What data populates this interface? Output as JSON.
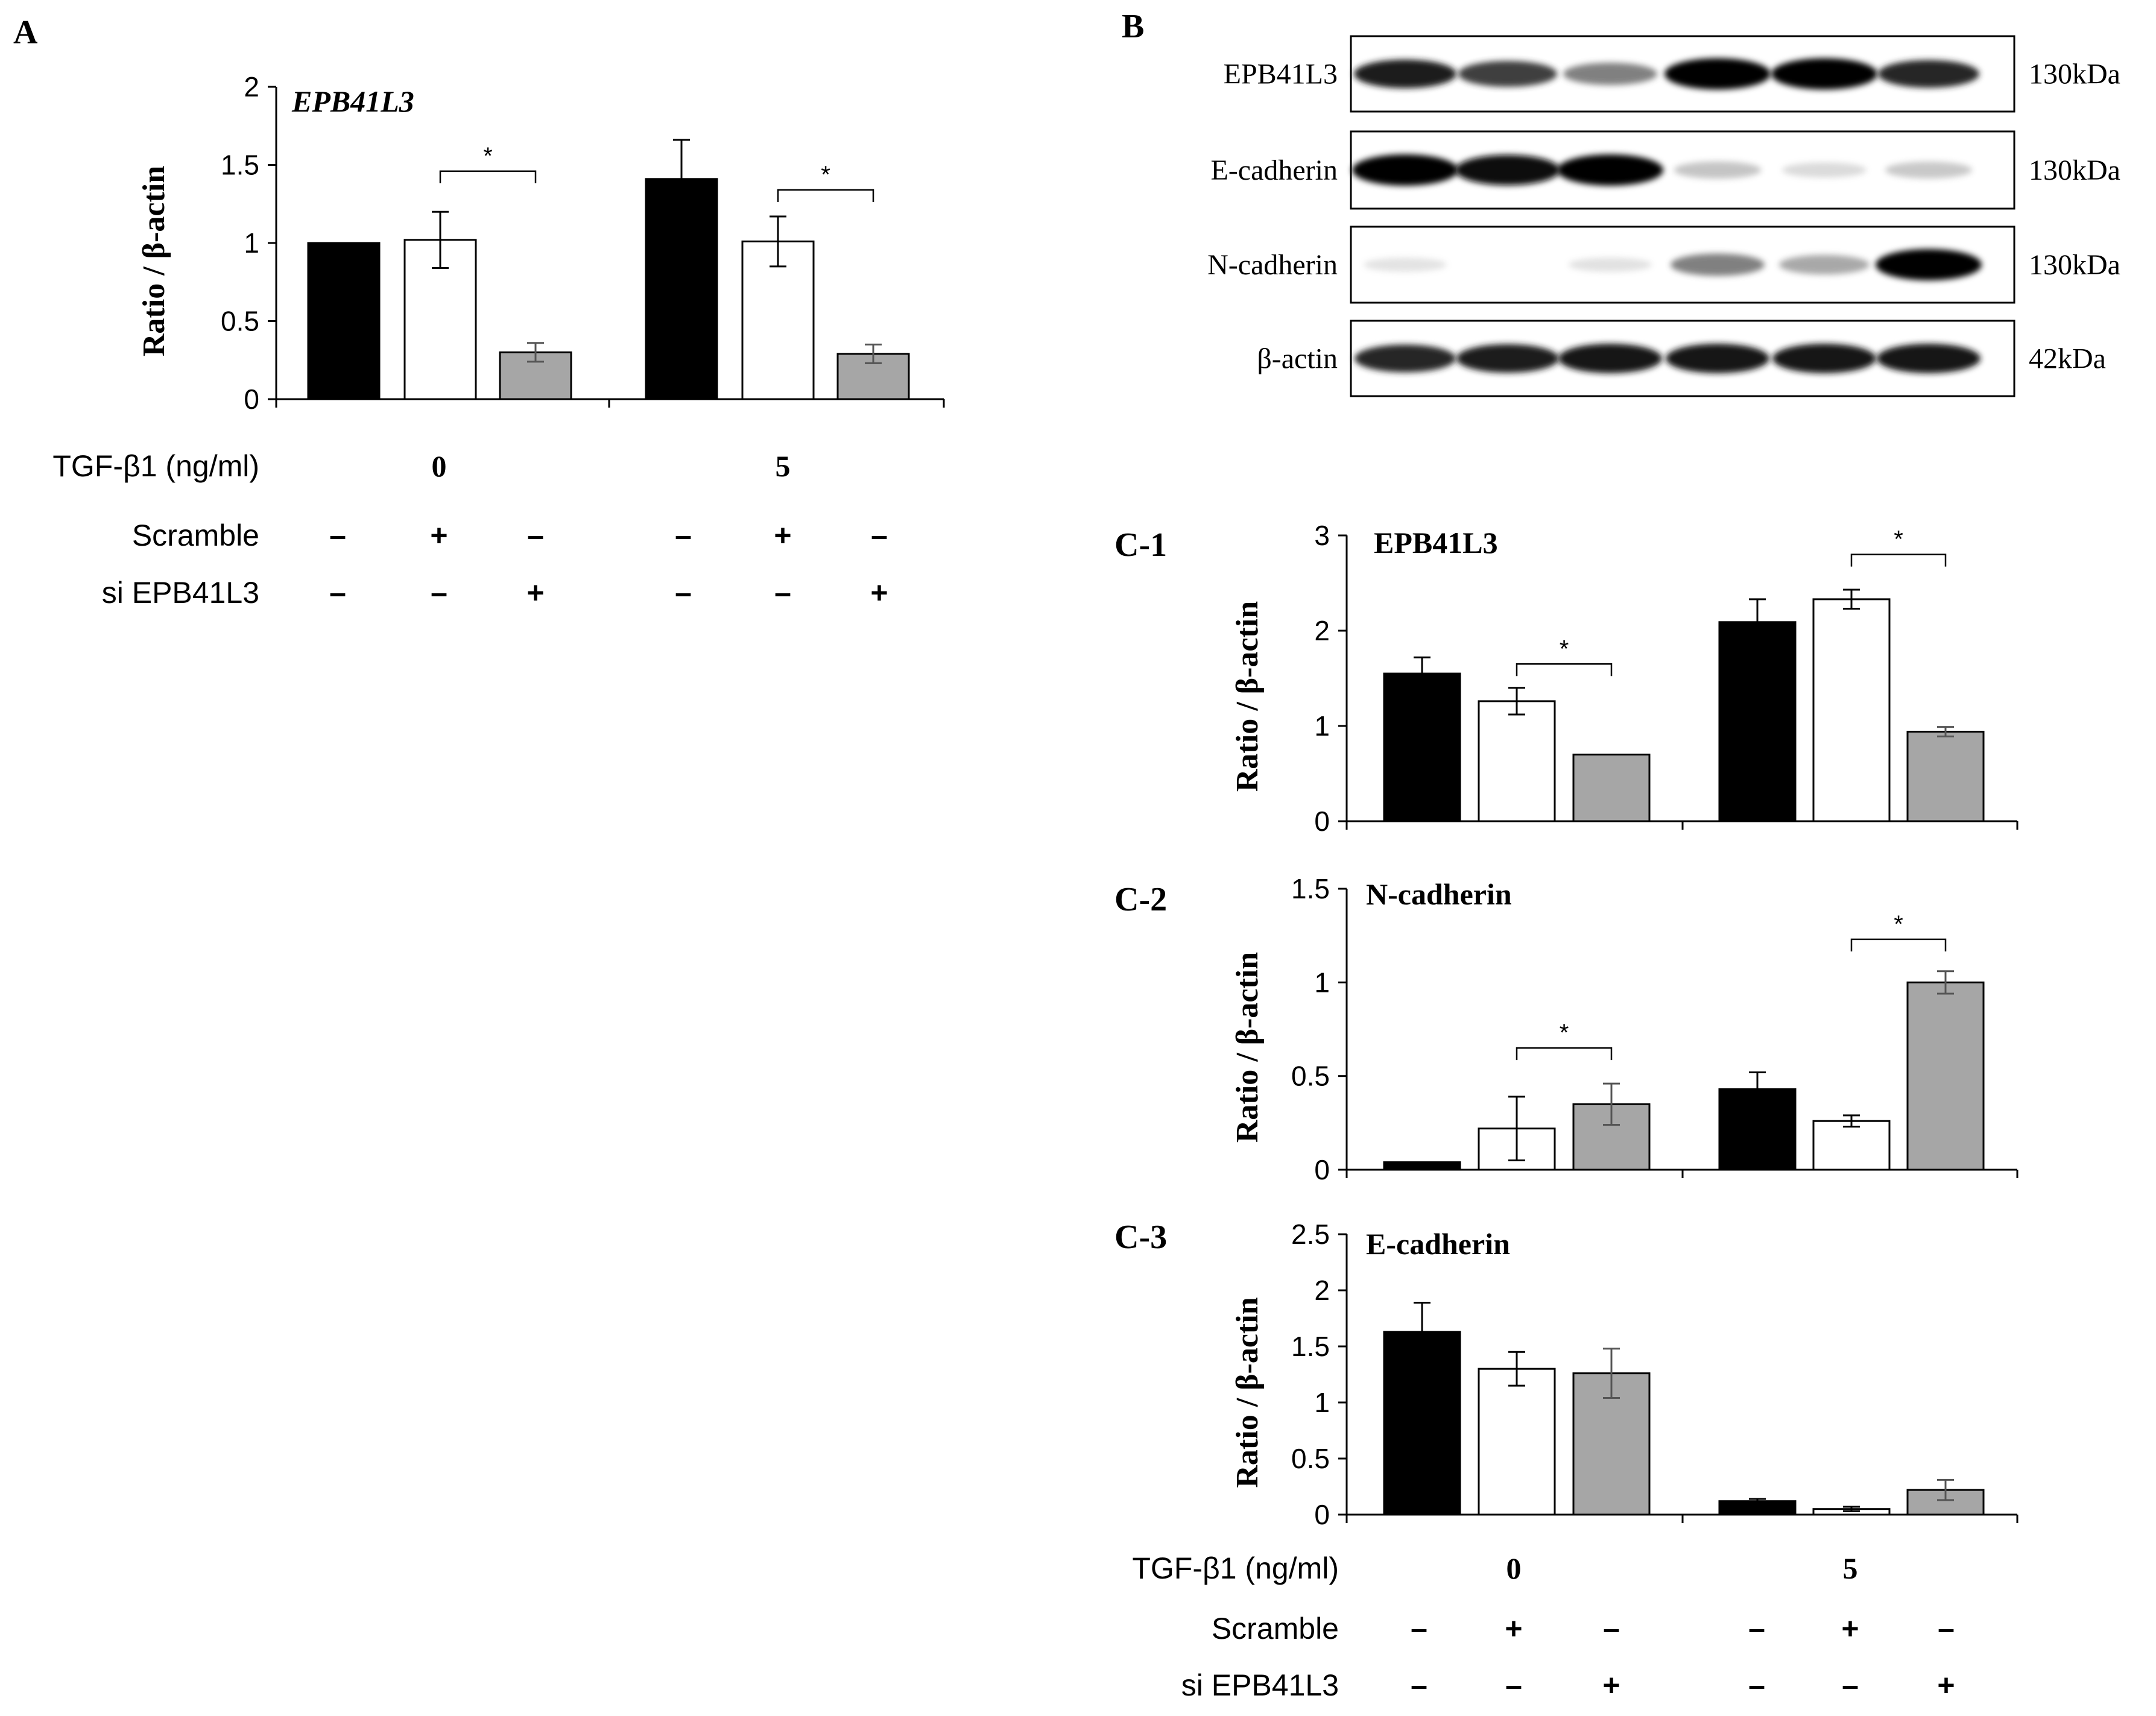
{
  "panel_labels": {
    "a": "A",
    "b": "B",
    "c1": "C-1",
    "c2": "C-2",
    "c3": "C-3"
  },
  "colors": {
    "black_bar": "#000000",
    "white_bar": "#ffffff",
    "grey_bar": "#a6a6a6",
    "axis": "#000000"
  },
  "legend_rows": {
    "tgf_label": "TGF-β1 (ng/ml)",
    "tgf_values": [
      "0",
      "5"
    ],
    "scramble_label": "Scramble",
    "scramble_marks": [
      "–",
      "+",
      "–",
      "–",
      "+",
      "–"
    ],
    "si_label": "si EPB41L3",
    "si_marks": [
      "–",
      "–",
      "+",
      "–",
      "–",
      "+"
    ]
  },
  "blot": {
    "rows": [
      {
        "name": "EPB41L3",
        "size": "130kDa",
        "intensities": [
          0.85,
          0.7,
          0.5,
          1.0,
          1.0,
          0.8
        ]
      },
      {
        "name": "E-cadherin",
        "size": "130kDa",
        "intensities": [
          1.0,
          0.95,
          1.0,
          0.22,
          0.1,
          0.2
        ]
      },
      {
        "name": "N-cadherin",
        "size": "130kDa",
        "intensities": [
          0.04,
          0.0,
          0.05,
          0.5,
          0.35,
          1.0
        ]
      },
      {
        "name": "β-actin",
        "size": "42kDa",
        "intensities": [
          0.8,
          0.85,
          0.9,
          0.9,
          0.9,
          0.9
        ]
      }
    ]
  },
  "chart_data": [
    {
      "id": "A",
      "type": "bar",
      "title": "EPB41L3",
      "title_italic": true,
      "ylabel": "Ratio / β-actin",
      "ylim": [
        0,
        2
      ],
      "yticks": [
        "0",
        "0.5",
        "1",
        "1.5",
        "2"
      ],
      "ytick_values": [
        0,
        0.5,
        1,
        1.5,
        2
      ],
      "groups": [
        "0",
        "5"
      ],
      "series": [
        {
          "color": "#000000",
          "values": [
            1.0,
            1.41
          ],
          "errors": [
            0,
            0.25
          ]
        },
        {
          "color": "#ffffff",
          "values": [
            1.02,
            1.01
          ],
          "errors": [
            0.18,
            0.16
          ]
        },
        {
          "color": "#a6a6a6",
          "values": [
            0.3,
            0.29
          ],
          "errors": [
            0.06,
            0.06
          ]
        }
      ],
      "significance": [
        {
          "group": 0,
          "from": 1,
          "to": 2,
          "y": 1.46,
          "label": "*"
        },
        {
          "group": 1,
          "from": 1,
          "to": 2,
          "y": 1.34,
          "label": "*"
        }
      ]
    },
    {
      "id": "C-1",
      "type": "bar",
      "title": "EPB41L3",
      "title_italic": false,
      "ylabel": "Ratio / β-actin",
      "ylim": [
        0,
        3
      ],
      "yticks": [
        "0",
        "1",
        "2",
        "3"
      ],
      "ytick_values": [
        0,
        1,
        2,
        3
      ],
      "groups": [
        "0",
        "5"
      ],
      "series": [
        {
          "color": "#000000",
          "values": [
            1.55,
            2.09
          ],
          "errors": [
            0.17,
            0.24
          ]
        },
        {
          "color": "#ffffff",
          "values": [
            1.26,
            2.33
          ],
          "errors": [
            0.14,
            0.1
          ]
        },
        {
          "color": "#a6a6a6",
          "values": [
            0.7,
            0.94
          ],
          "errors": [
            0,
            0.05
          ]
        }
      ],
      "significance": [
        {
          "group": 0,
          "from": 1,
          "to": 2,
          "y": 1.65,
          "label": "*"
        },
        {
          "group": 1,
          "from": 1,
          "to": 2,
          "y": 2.8,
          "label": "*"
        }
      ]
    },
    {
      "id": "C-2",
      "type": "bar",
      "title": "N-cadherin",
      "title_italic": false,
      "ylabel": "Ratio / β-actin",
      "ylim": [
        0,
        1.5
      ],
      "yticks": [
        "0",
        "0.5",
        "1",
        "1.5"
      ],
      "ytick_values": [
        0,
        0.5,
        1,
        1.5
      ],
      "groups": [
        "0",
        "5"
      ],
      "series": [
        {
          "color": "#000000",
          "values": [
            0.04,
            0.43
          ],
          "errors": [
            0,
            0.09
          ]
        },
        {
          "color": "#ffffff",
          "values": [
            0.22,
            0.26
          ],
          "errors": [
            0.17,
            0.03
          ]
        },
        {
          "color": "#a6a6a6",
          "values": [
            0.35,
            1.0
          ],
          "errors": [
            0.11,
            0.06
          ]
        }
      ],
      "significance": [
        {
          "group": 0,
          "from": 1,
          "to": 2,
          "y": 0.65,
          "label": "*"
        },
        {
          "group": 1,
          "from": 1,
          "to": 2,
          "y": 1.23,
          "label": "*"
        }
      ]
    },
    {
      "id": "C-3",
      "type": "bar",
      "title": "E-cadherin",
      "title_italic": false,
      "ylabel": "Ratio / β-actin",
      "ylim": [
        0,
        2.5
      ],
      "yticks": [
        "0",
        "0.5",
        "1",
        "1.5",
        "2",
        "2.5"
      ],
      "ytick_values": [
        0,
        0.5,
        1,
        1.5,
        2,
        2.5
      ],
      "groups": [
        "0",
        "5"
      ],
      "series": [
        {
          "color": "#000000",
          "values": [
            1.63,
            0.12
          ],
          "errors": [
            0.26,
            0.02
          ]
        },
        {
          "color": "#ffffff",
          "values": [
            1.3,
            0.05
          ],
          "errors": [
            0.15,
            0.02
          ]
        },
        {
          "color": "#a6a6a6",
          "values": [
            1.26,
            0.22
          ],
          "errors": [
            0.22,
            0.09
          ]
        }
      ],
      "significance": []
    }
  ]
}
